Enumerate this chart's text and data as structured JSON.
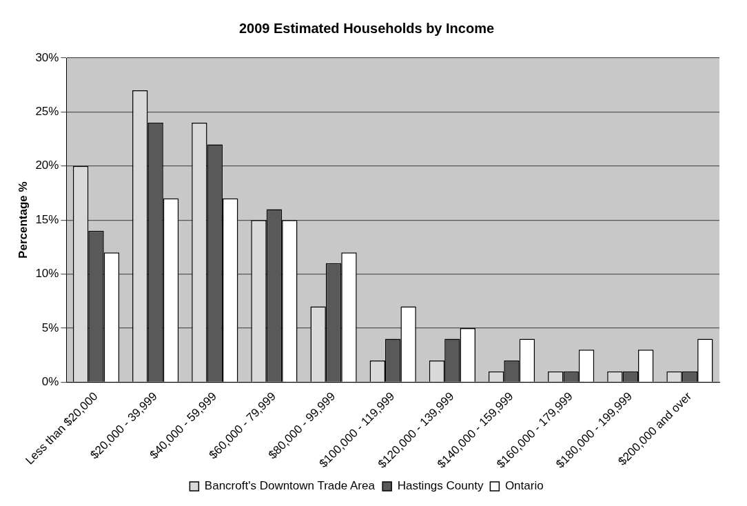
{
  "chart_data": {
    "type": "bar",
    "title": "2009 Estimated Households by Income",
    "ylabel": "Percentage %",
    "categories": [
      "Less than $20,000",
      "$20,000 - 39,999",
      "$40,000 - 59,999",
      "$60,000 - 79,999",
      "$80,000 - 99,999",
      "$100,000 - 119,999",
      "$120,000 - 139,999",
      "$140,000 - 159,999",
      "$160,000 - 179,999",
      "$180,000 - 199,999",
      "$200,000 and over"
    ],
    "series": [
      {
        "name": "Bancroft's Downtown Trade Area",
        "color": "#d9d9d9",
        "values": [
          20,
          27,
          24,
          15,
          7,
          2,
          2,
          1,
          1,
          1,
          1
        ]
      },
      {
        "name": "Hastings County",
        "color": "#595959",
        "values": [
          14,
          24,
          22,
          16,
          11,
          4,
          4,
          2,
          1,
          1,
          1
        ]
      },
      {
        "name": "Ontario",
        "color": "#ffffff",
        "values": [
          12,
          17,
          17,
          15,
          12,
          7,
          5,
          4,
          3,
          3,
          4
        ]
      }
    ],
    "ylim": [
      0,
      30
    ],
    "yticks": [
      {
        "value": 0,
        "label": "0%"
      },
      {
        "value": 5,
        "label": "5%"
      },
      {
        "value": 10,
        "label": "10%"
      },
      {
        "value": 15,
        "label": "15%"
      },
      {
        "value": 20,
        "label": "20%"
      },
      {
        "value": 25,
        "label": "25%"
      },
      {
        "value": 30,
        "label": "30%"
      }
    ],
    "grid": "y",
    "legend": "bottom"
  }
}
